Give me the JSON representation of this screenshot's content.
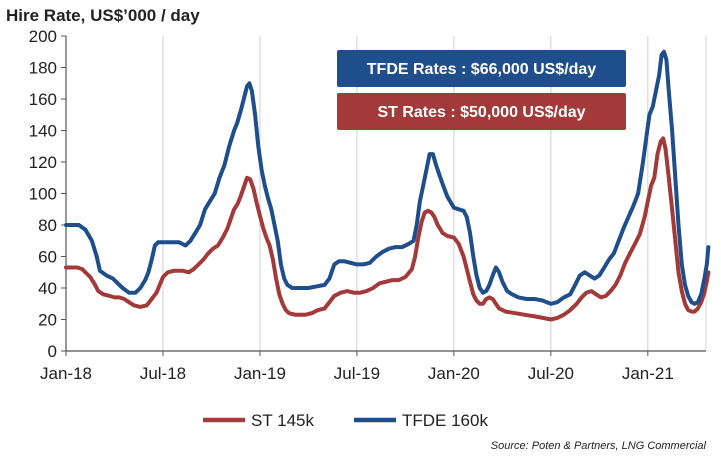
{
  "colors": {
    "st": "#a33a3a",
    "tfde": "#1f4e8c",
    "grid": "#d0d0d0",
    "axis": "#555555"
  },
  "chart_data": {
    "type": "line",
    "title": "Hire Rate,  US$’000 / day",
    "ylim": [
      0,
      200
    ],
    "yticks": [
      0,
      20,
      40,
      60,
      80,
      100,
      120,
      140,
      160,
      180,
      200
    ],
    "x_domain": [
      0,
      39.6
    ],
    "xticks": [
      {
        "x": 0,
        "label": "Jan-18"
      },
      {
        "x": 6,
        "label": "Jul-18"
      },
      {
        "x": 12,
        "label": "Jan-19"
      },
      {
        "x": 18,
        "label": "Jul-19"
      },
      {
        "x": 24,
        "label": "Jan-20"
      },
      {
        "x": 30,
        "label": "Jul-20"
      },
      {
        "x": 36,
        "label": "Jan-21"
      }
    ],
    "grid": "vertical",
    "annotations": [
      {
        "text": "TFDE Rates : $66,000 US$/day",
        "series": "TFDE 160k"
      },
      {
        "text": "ST Rates : $50,000 US$/day",
        "series": "ST 145k"
      }
    ],
    "legend": {
      "position": "bottom",
      "entries": [
        "ST 145k",
        "TFDE 160k"
      ]
    },
    "source": "Source: Poten & Partners, LNG Commercial",
    "series": [
      {
        "name": "ST 145k",
        "color_key": "st",
        "points": [
          [
            0,
            53
          ],
          [
            0.7,
            53
          ],
          [
            1,
            52
          ],
          [
            1.2,
            50
          ],
          [
            1.5,
            47
          ],
          [
            1.8,
            42
          ],
          [
            2,
            38
          ],
          [
            2.3,
            36
          ],
          [
            2.7,
            35
          ],
          [
            3,
            34
          ],
          [
            3.3,
            34
          ],
          [
            3.6,
            33
          ],
          [
            3.9,
            31
          ],
          [
            4.2,
            29
          ],
          [
            4.6,
            28
          ],
          [
            5,
            29
          ],
          [
            5.3,
            33
          ],
          [
            5.6,
            37
          ],
          [
            5.8,
            42
          ],
          [
            6,
            47
          ],
          [
            6.3,
            50
          ],
          [
            6.7,
            51
          ],
          [
            7.2,
            51
          ],
          [
            7.6,
            50
          ],
          [
            7.9,
            52
          ],
          [
            8.2,
            55
          ],
          [
            8.5,
            58
          ],
          [
            8.8,
            62
          ],
          [
            9.1,
            65
          ],
          [
            9.4,
            67
          ],
          [
            9.7,
            72
          ],
          [
            10,
            78
          ],
          [
            10.2,
            84
          ],
          [
            10.4,
            90
          ],
          [
            10.6,
            93
          ],
          [
            10.8,
            98
          ],
          [
            11,
            104
          ],
          [
            11.2,
            110
          ],
          [
            11.4,
            109
          ],
          [
            11.6,
            103
          ],
          [
            11.8,
            94
          ],
          [
            12,
            86
          ],
          [
            12.2,
            78
          ],
          [
            12.4,
            72
          ],
          [
            12.6,
            67
          ],
          [
            12.8,
            58
          ],
          [
            13,
            46
          ],
          [
            13.2,
            36
          ],
          [
            13.4,
            30
          ],
          [
            13.6,
            26
          ],
          [
            13.8,
            24
          ],
          [
            14.2,
            23
          ],
          [
            14.8,
            23
          ],
          [
            15.2,
            24
          ],
          [
            15.6,
            26
          ],
          [
            16,
            27
          ],
          [
            16.3,
            31
          ],
          [
            16.6,
            35
          ],
          [
            17,
            37
          ],
          [
            17.4,
            38
          ],
          [
            17.8,
            37
          ],
          [
            18.2,
            37
          ],
          [
            18.6,
            38
          ],
          [
            19,
            40
          ],
          [
            19.4,
            43
          ],
          [
            19.8,
            44
          ],
          [
            20.2,
            45
          ],
          [
            20.6,
            45
          ],
          [
            21,
            47
          ],
          [
            21.4,
            52
          ],
          [
            21.6,
            60
          ],
          [
            21.8,
            72
          ],
          [
            22,
            82
          ],
          [
            22.2,
            88
          ],
          [
            22.4,
            89
          ],
          [
            22.6,
            88
          ],
          [
            22.8,
            85
          ],
          [
            23,
            80
          ],
          [
            23.3,
            75
          ],
          [
            23.6,
            73
          ],
          [
            24,
            72
          ],
          [
            24.3,
            68
          ],
          [
            24.6,
            60
          ],
          [
            24.8,
            52
          ],
          [
            25,
            44
          ],
          [
            25.2,
            36
          ],
          [
            25.4,
            32
          ],
          [
            25.6,
            30
          ],
          [
            25.8,
            30
          ],
          [
            26,
            33
          ],
          [
            26.2,
            34
          ],
          [
            26.4,
            33
          ],
          [
            26.6,
            30
          ],
          [
            26.8,
            27
          ],
          [
            27.2,
            25
          ],
          [
            27.8,
            24
          ],
          [
            28.4,
            23
          ],
          [
            29,
            22
          ],
          [
            29.5,
            21
          ],
          [
            30,
            20
          ],
          [
            30.4,
            21
          ],
          [
            30.8,
            23
          ],
          [
            31.2,
            26
          ],
          [
            31.6,
            30
          ],
          [
            31.9,
            34
          ],
          [
            32.2,
            37
          ],
          [
            32.5,
            38
          ],
          [
            32.8,
            36
          ],
          [
            33.1,
            34
          ],
          [
            33.4,
            35
          ],
          [
            33.7,
            38
          ],
          [
            34,
            42
          ],
          [
            34.3,
            48
          ],
          [
            34.6,
            56
          ],
          [
            34.9,
            62
          ],
          [
            35.2,
            68
          ],
          [
            35.5,
            74
          ],
          [
            35.8,
            85
          ],
          [
            36,
            95
          ],
          [
            36.2,
            105
          ],
          [
            36.4,
            110
          ],
          [
            36.6,
            125
          ],
          [
            36.8,
            133
          ],
          [
            36.95,
            135
          ],
          [
            37.1,
            128
          ],
          [
            37.3,
            110
          ],
          [
            37.5,
            90
          ],
          [
            37.7,
            70
          ],
          [
            37.9,
            50
          ],
          [
            38.1,
            38
          ],
          [
            38.3,
            30
          ],
          [
            38.5,
            26
          ],
          [
            38.7,
            25
          ],
          [
            38.9,
            25
          ],
          [
            39.1,
            27
          ],
          [
            39.3,
            31
          ],
          [
            39.5,
            37
          ],
          [
            39.6,
            42
          ],
          [
            39.65,
            44
          ],
          [
            39.75,
            50
          ]
        ]
      },
      {
        "name": "TFDE 160k",
        "color_key": "tfde",
        "points": [
          [
            0,
            80
          ],
          [
            0.8,
            80
          ],
          [
            1.2,
            77
          ],
          [
            1.6,
            70
          ],
          [
            1.9,
            60
          ],
          [
            2.1,
            51
          ],
          [
            2.5,
            48
          ],
          [
            2.9,
            46
          ],
          [
            3.2,
            43
          ],
          [
            3.5,
            40
          ],
          [
            3.9,
            37
          ],
          [
            4.3,
            37
          ],
          [
            4.6,
            40
          ],
          [
            4.9,
            45
          ],
          [
            5.1,
            50
          ],
          [
            5.3,
            58
          ],
          [
            5.5,
            67
          ],
          [
            5.7,
            69
          ],
          [
            6,
            69
          ],
          [
            6.5,
            69
          ],
          [
            7,
            69
          ],
          [
            7.4,
            67
          ],
          [
            7.7,
            70
          ],
          [
            8,
            75
          ],
          [
            8.3,
            80
          ],
          [
            8.6,
            90
          ],
          [
            8.9,
            95
          ],
          [
            9.2,
            100
          ],
          [
            9.5,
            110
          ],
          [
            9.8,
            118
          ],
          [
            10.1,
            130
          ],
          [
            10.4,
            140
          ],
          [
            10.6,
            145
          ],
          [
            10.8,
            152
          ],
          [
            11,
            160
          ],
          [
            11.2,
            168
          ],
          [
            11.35,
            170
          ],
          [
            11.5,
            165
          ],
          [
            11.7,
            150
          ],
          [
            11.9,
            130
          ],
          [
            12.1,
            115
          ],
          [
            12.3,
            105
          ],
          [
            12.5,
            97
          ],
          [
            12.7,
            90
          ],
          [
            12.9,
            80
          ],
          [
            13.1,
            70
          ],
          [
            13.3,
            55
          ],
          [
            13.5,
            46
          ],
          [
            13.7,
            42
          ],
          [
            14,
            40
          ],
          [
            14.5,
            40
          ],
          [
            15,
            40
          ],
          [
            15.5,
            41
          ],
          [
            16,
            42
          ],
          [
            16.3,
            46
          ],
          [
            16.6,
            55
          ],
          [
            16.9,
            57
          ],
          [
            17.2,
            57
          ],
          [
            17.6,
            56
          ],
          [
            18,
            55
          ],
          [
            18.4,
            55
          ],
          [
            18.8,
            56
          ],
          [
            19.2,
            60
          ],
          [
            19.6,
            63
          ],
          [
            20,
            65
          ],
          [
            20.4,
            66
          ],
          [
            20.8,
            66
          ],
          [
            21.2,
            68
          ],
          [
            21.5,
            70
          ],
          [
            21.7,
            80
          ],
          [
            21.9,
            95
          ],
          [
            22.1,
            105
          ],
          [
            22.3,
            115
          ],
          [
            22.5,
            125
          ],
          [
            22.7,
            125
          ],
          [
            22.9,
            118
          ],
          [
            23.1,
            112
          ],
          [
            23.3,
            106
          ],
          [
            23.6,
            98
          ],
          [
            24,
            91
          ],
          [
            24.3,
            90
          ],
          [
            24.6,
            89
          ],
          [
            24.8,
            85
          ],
          [
            25,
            75
          ],
          [
            25.2,
            60
          ],
          [
            25.4,
            48
          ],
          [
            25.6,
            40
          ],
          [
            25.8,
            37
          ],
          [
            26,
            38
          ],
          [
            26.2,
            42
          ],
          [
            26.4,
            48
          ],
          [
            26.6,
            53
          ],
          [
            26.8,
            50
          ],
          [
            27,
            44
          ],
          [
            27.3,
            38
          ],
          [
            27.6,
            36
          ],
          [
            28,
            34
          ],
          [
            28.5,
            33
          ],
          [
            29,
            33
          ],
          [
            29.5,
            32
          ],
          [
            30,
            30
          ],
          [
            30.4,
            31
          ],
          [
            30.8,
            34
          ],
          [
            31.2,
            36
          ],
          [
            31.5,
            42
          ],
          [
            31.8,
            48
          ],
          [
            32.1,
            50
          ],
          [
            32.4,
            48
          ],
          [
            32.7,
            46
          ],
          [
            33,
            48
          ],
          [
            33.3,
            53
          ],
          [
            33.6,
            58
          ],
          [
            33.9,
            62
          ],
          [
            34.2,
            70
          ],
          [
            34.5,
            78
          ],
          [
            34.8,
            85
          ],
          [
            35.1,
            92
          ],
          [
            35.4,
            100
          ],
          [
            35.7,
            120
          ],
          [
            35.9,
            135
          ],
          [
            36.1,
            150
          ],
          [
            36.3,
            155
          ],
          [
            36.5,
            165
          ],
          [
            36.7,
            175
          ],
          [
            36.85,
            188
          ],
          [
            37,
            190
          ],
          [
            37.15,
            185
          ],
          [
            37.3,
            165
          ],
          [
            37.5,
            140
          ],
          [
            37.7,
            110
          ],
          [
            37.9,
            80
          ],
          [
            38.1,
            55
          ],
          [
            38.3,
            42
          ],
          [
            38.5,
            35
          ],
          [
            38.7,
            31
          ],
          [
            38.9,
            30
          ],
          [
            39.1,
            31
          ],
          [
            39.3,
            36
          ],
          [
            39.5,
            46
          ],
          [
            39.65,
            55
          ],
          [
            39.75,
            66
          ]
        ]
      }
    ]
  }
}
